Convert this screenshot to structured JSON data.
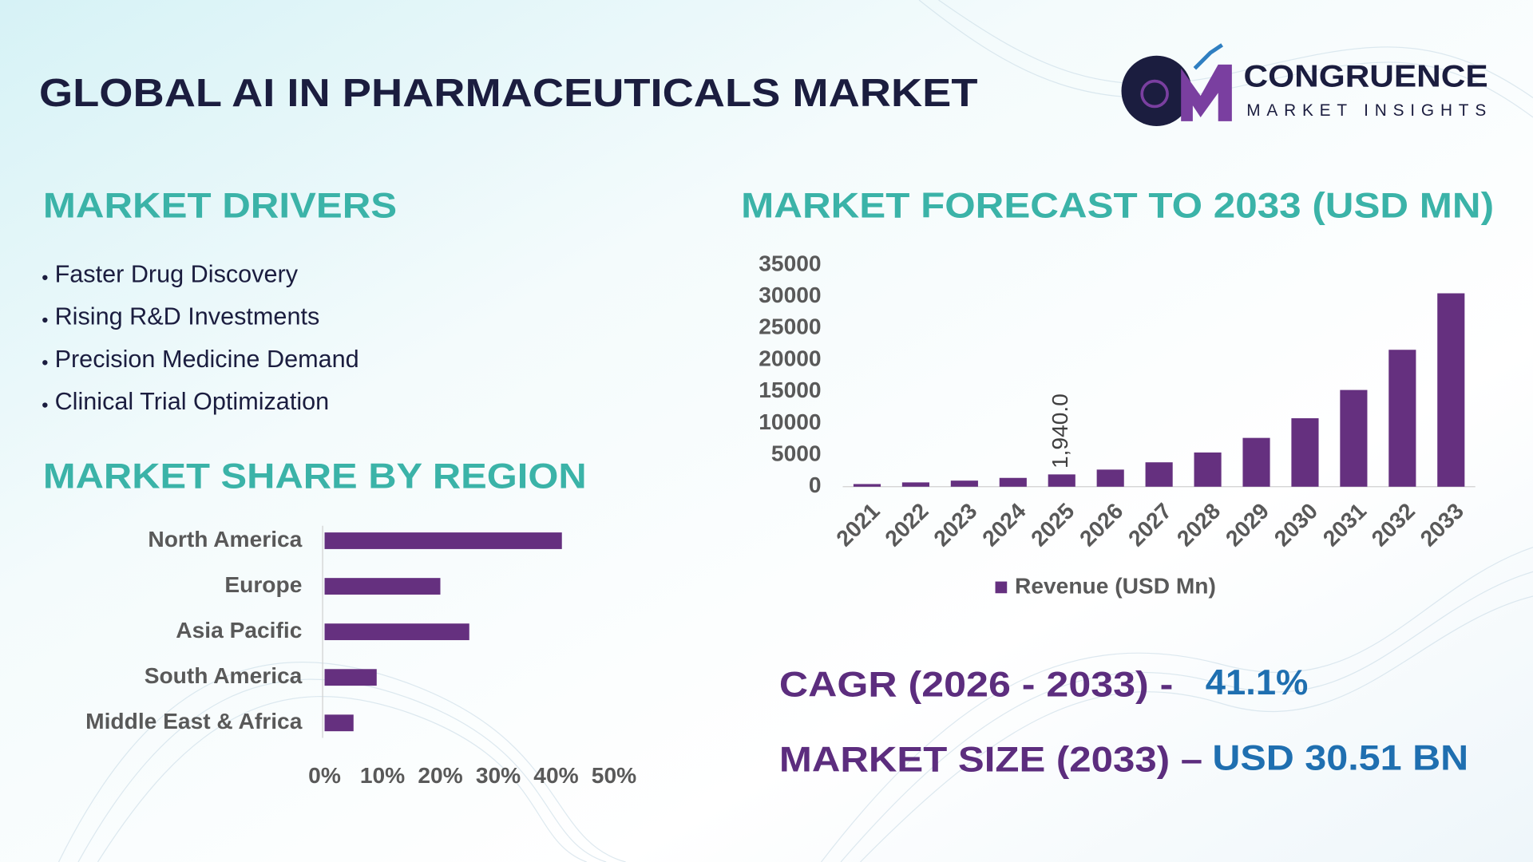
{
  "header": {
    "title": "GLOBAL AI IN PHARMACEUTICALS MARKET",
    "logo_name": "CONGRUENCE",
    "logo_tagline": "MARKET INSIGHTS"
  },
  "drivers": {
    "title": "MARKET DRIVERS",
    "items": [
      "Faster Drug Discovery",
      "Rising R&D Investments",
      "Precision Medicine Demand",
      "Clinical Trial Optimization"
    ]
  },
  "chart_data": [
    {
      "type": "bar",
      "title": "MARKET FORECAST TO 2033 (USD MN)",
      "categories": [
        "2021",
        "2022",
        "2023",
        "2024",
        "2025",
        "2026",
        "2027",
        "2028",
        "2029",
        "2030",
        "2031",
        "2032",
        "2033"
      ],
      "series": [
        {
          "name": "Revenue (USD Mn)",
          "color": "#65307f",
          "values": [
            420,
            680,
            960,
            1390,
            1940,
            2700,
            3850,
            5400,
            7700,
            10800,
            15260,
            21600,
            30510
          ],
          "value_labels": [
            null,
            null,
            null,
            null,
            "1,940.0",
            null,
            null,
            null,
            null,
            null,
            null,
            null,
            null
          ]
        }
      ],
      "ylim": [
        0,
        35000
      ],
      "yticks": [
        0,
        5000,
        10000,
        15000,
        20000,
        25000,
        30000,
        35000
      ],
      "legend": "bottom"
    },
    {
      "type": "barh",
      "title": "MARKET SHARE BY REGION",
      "categories": [
        "North America",
        "Europe",
        "Asia Pacific",
        "South America",
        "Middle East & Africa"
      ],
      "values": [
        41,
        20,
        25,
        9,
        5
      ],
      "color": "#65307f",
      "xlim": [
        0,
        50
      ],
      "xticks": [
        {
          "value": 0,
          "label": "0%"
        },
        {
          "value": 10,
          "label": "10%"
        },
        {
          "value": 20,
          "label": "20%"
        },
        {
          "value": 30,
          "label": "30%"
        },
        {
          "value": 40,
          "label": "40%"
        },
        {
          "value": 50,
          "label": "50%"
        }
      ]
    }
  ],
  "highlights": [
    {
      "label": "CAGR (2026 - 2033) -",
      "value": "41.1%"
    },
    {
      "label": "MARKET SIZE (2033) –",
      "value": "USD 30.51 BN"
    }
  ]
}
